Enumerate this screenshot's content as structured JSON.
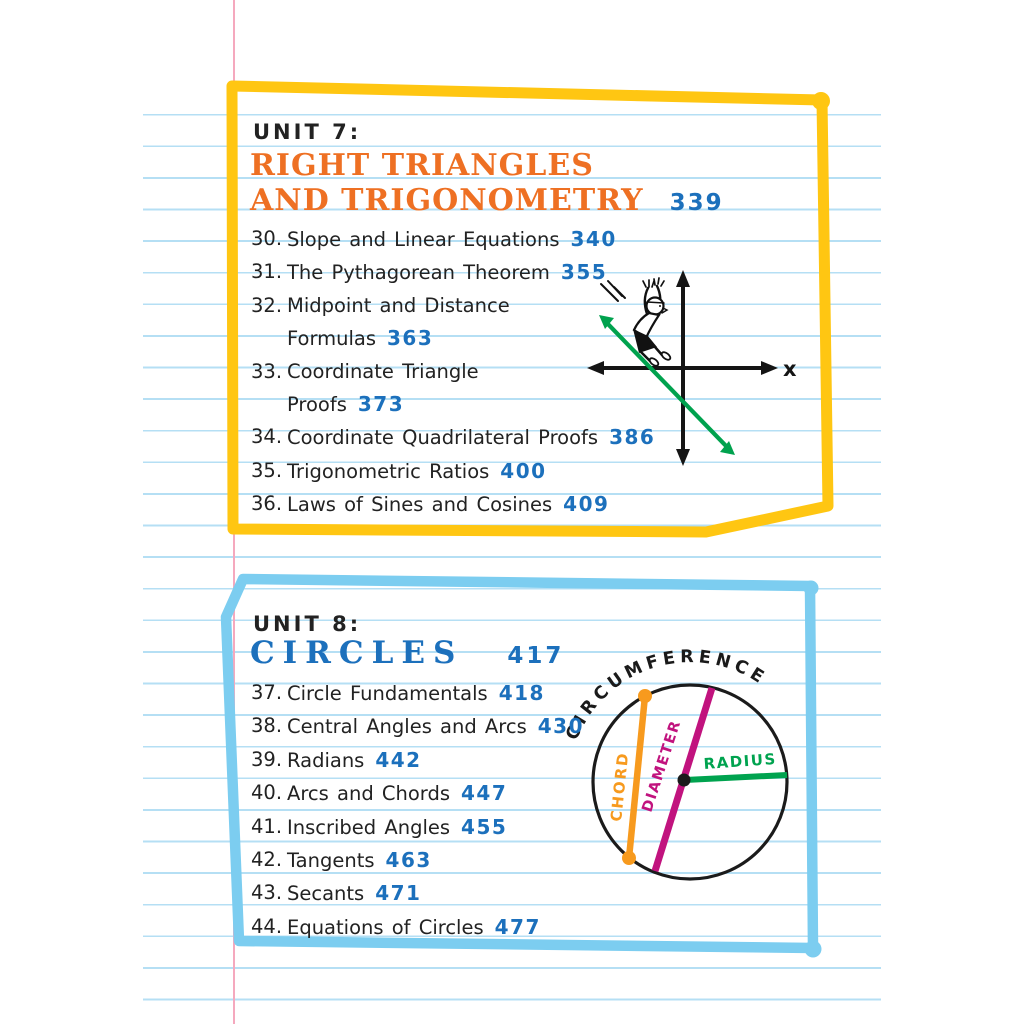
{
  "page": {
    "background": "#ffffff",
    "ruled_line_color": "#b5dff4",
    "margin_line_color": "#f5a9be",
    "body_text_color": "#222222",
    "page_number_color": "#1c70bc"
  },
  "units": [
    {
      "label": "UNIT 7:",
      "title_lines": [
        "RIGHT TRIANGLES",
        "AND TRIGONOMETRY"
      ],
      "page_number": "339",
      "title_color": "#ee7023",
      "frame_color": "#ffc612",
      "chapters": [
        {
          "num": "30.",
          "lines": [
            {
              "text": "Slope and Linear Equations",
              "page": "340"
            }
          ]
        },
        {
          "num": "31.",
          "lines": [
            {
              "text": "The Pythagorean Theorem",
              "page": "355"
            }
          ]
        },
        {
          "num": "32.",
          "lines": [
            {
              "text": "Midpoint and Distance"
            },
            {
              "text": "Formulas",
              "page": "363"
            }
          ]
        },
        {
          "num": "33.",
          "lines": [
            {
              "text": "Coordinate Triangle"
            },
            {
              "text": "Proofs",
              "page": "373"
            }
          ]
        },
        {
          "num": "34.",
          "lines": [
            {
              "text": "Coordinate Quadrilateral Proofs",
              "page": "386"
            }
          ]
        },
        {
          "num": "35.",
          "lines": [
            {
              "text": "Trigonometric Ratios",
              "page": "400"
            }
          ]
        },
        {
          "num": "36.",
          "lines": [
            {
              "text": "Laws of Sines and Cosines",
              "page": "409"
            }
          ]
        }
      ]
    },
    {
      "label": "UNIT 8:",
      "title_lines": [
        "CIRCLES"
      ],
      "page_number": "417",
      "title_color": "#1c70bc",
      "frame_color": "#7ccdf0",
      "chapters": [
        {
          "num": "37.",
          "lines": [
            {
              "text": "Circle Fundamentals",
              "page": "418"
            }
          ]
        },
        {
          "num": "38.",
          "lines": [
            {
              "text": "Central Angles and Arcs",
              "page": "430"
            }
          ]
        },
        {
          "num": "39.",
          "lines": [
            {
              "text": "Radians",
              "page": "442"
            }
          ]
        },
        {
          "num": "40.",
          "lines": [
            {
              "text": "Arcs and Chords",
              "page": "447"
            }
          ]
        },
        {
          "num": "41.",
          "lines": [
            {
              "text": "Inscribed Angles",
              "page": "455"
            }
          ]
        },
        {
          "num": "42.",
          "lines": [
            {
              "text": "Tangents",
              "page": "463"
            }
          ]
        },
        {
          "num": "43.",
          "lines": [
            {
              "text": "Secants",
              "page": "471"
            }
          ]
        },
        {
          "num": "44.",
          "lines": [
            {
              "text": "Equations of Circles",
              "page": "477"
            }
          ]
        }
      ]
    }
  ],
  "diagrams": {
    "coordinate_plane": {
      "x_axis_label": "x",
      "slide_line_color": "#00a24e",
      "axis_color": "#151515"
    },
    "circle": {
      "circumference_label": "CIRCUMFERENCE",
      "chord_label": "CHORD",
      "diameter_label": "DIAMETER",
      "radius_label": "RADIUS",
      "outline_color": "#1b1b1b",
      "chord_color": "#f79a1e",
      "diameter_color": "#c1137e",
      "radius_color": "#00a34f"
    }
  }
}
